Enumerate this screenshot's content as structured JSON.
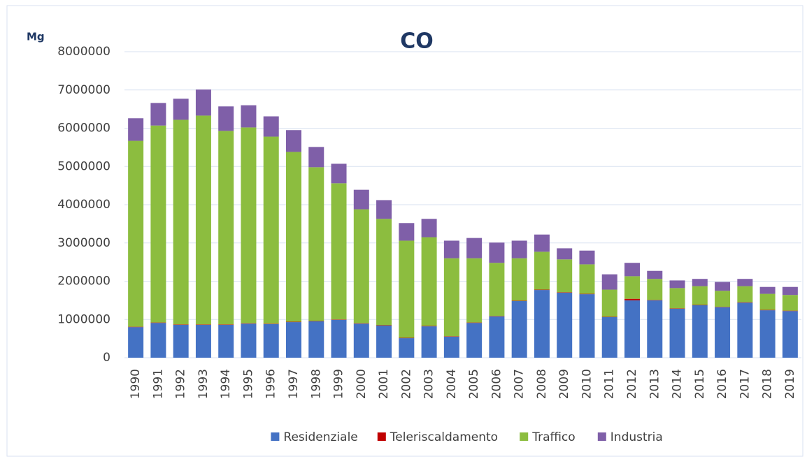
{
  "chart_data": {
    "type": "stacked_bar",
    "title": "CO",
    "y_label": "Mg",
    "categories": [
      "1990",
      "1991",
      "1992",
      "1993",
      "1994",
      "1995",
      "1996",
      "1997",
      "1998",
      "1999",
      "2000",
      "2001",
      "2002",
      "2003",
      "2004",
      "2005",
      "2006",
      "2007",
      "2008",
      "2009",
      "2010",
      "2011",
      "2012",
      "2013",
      "2014",
      "2015",
      "2016",
      "2017",
      "2018",
      "2019"
    ],
    "series": [
      {
        "name": "Residenziale",
        "color": "#4472c4",
        "values": [
          800000,
          910000,
          860000,
          860000,
          860000,
          890000,
          880000,
          930000,
          950000,
          990000,
          890000,
          840000,
          510000,
          820000,
          550000,
          910000,
          1080000,
          1480000,
          1770000,
          1700000,
          1660000,
          1060000,
          1500000,
          1500000,
          1280000,
          1370000,
          1320000,
          1440000,
          1240000,
          1220000
        ]
      },
      {
        "name": "Teleriscaldamento",
        "color": "#c00000",
        "values": [
          10000,
          10000,
          10000,
          10000,
          10000,
          10000,
          10000,
          10000,
          10000,
          10000,
          10000,
          10000,
          10000,
          10000,
          10000,
          10000,
          10000,
          10000,
          10000,
          10000,
          10000,
          10000,
          40000,
          10000,
          10000,
          10000,
          10000,
          10000,
          10000,
          10000
        ]
      },
      {
        "name": "Traffico",
        "color": "#8cbd3f",
        "values": [
          4860000,
          5150000,
          5350000,
          5460000,
          5060000,
          5120000,
          4890000,
          4440000,
          4020000,
          3560000,
          2980000,
          2780000,
          2540000,
          2320000,
          2040000,
          1680000,
          1390000,
          1110000,
          990000,
          860000,
          770000,
          710000,
          590000,
          550000,
          530000,
          490000,
          420000,
          420000,
          420000,
          410000
        ]
      },
      {
        "name": "Industria",
        "color": "#7f5fa8",
        "values": [
          590000,
          590000,
          550000,
          680000,
          640000,
          580000,
          530000,
          570000,
          530000,
          510000,
          510000,
          490000,
          460000,
          480000,
          460000,
          530000,
          530000,
          460000,
          450000,
          290000,
          360000,
          400000,
          350000,
          210000,
          200000,
          190000,
          230000,
          190000,
          180000,
          210000
        ]
      }
    ],
    "ylim": [
      0,
      8000000
    ],
    "yticks": [
      0,
      1000000,
      2000000,
      3000000,
      4000000,
      5000000,
      6000000,
      7000000,
      8000000
    ],
    "grid": true,
    "legend": "bottom"
  }
}
